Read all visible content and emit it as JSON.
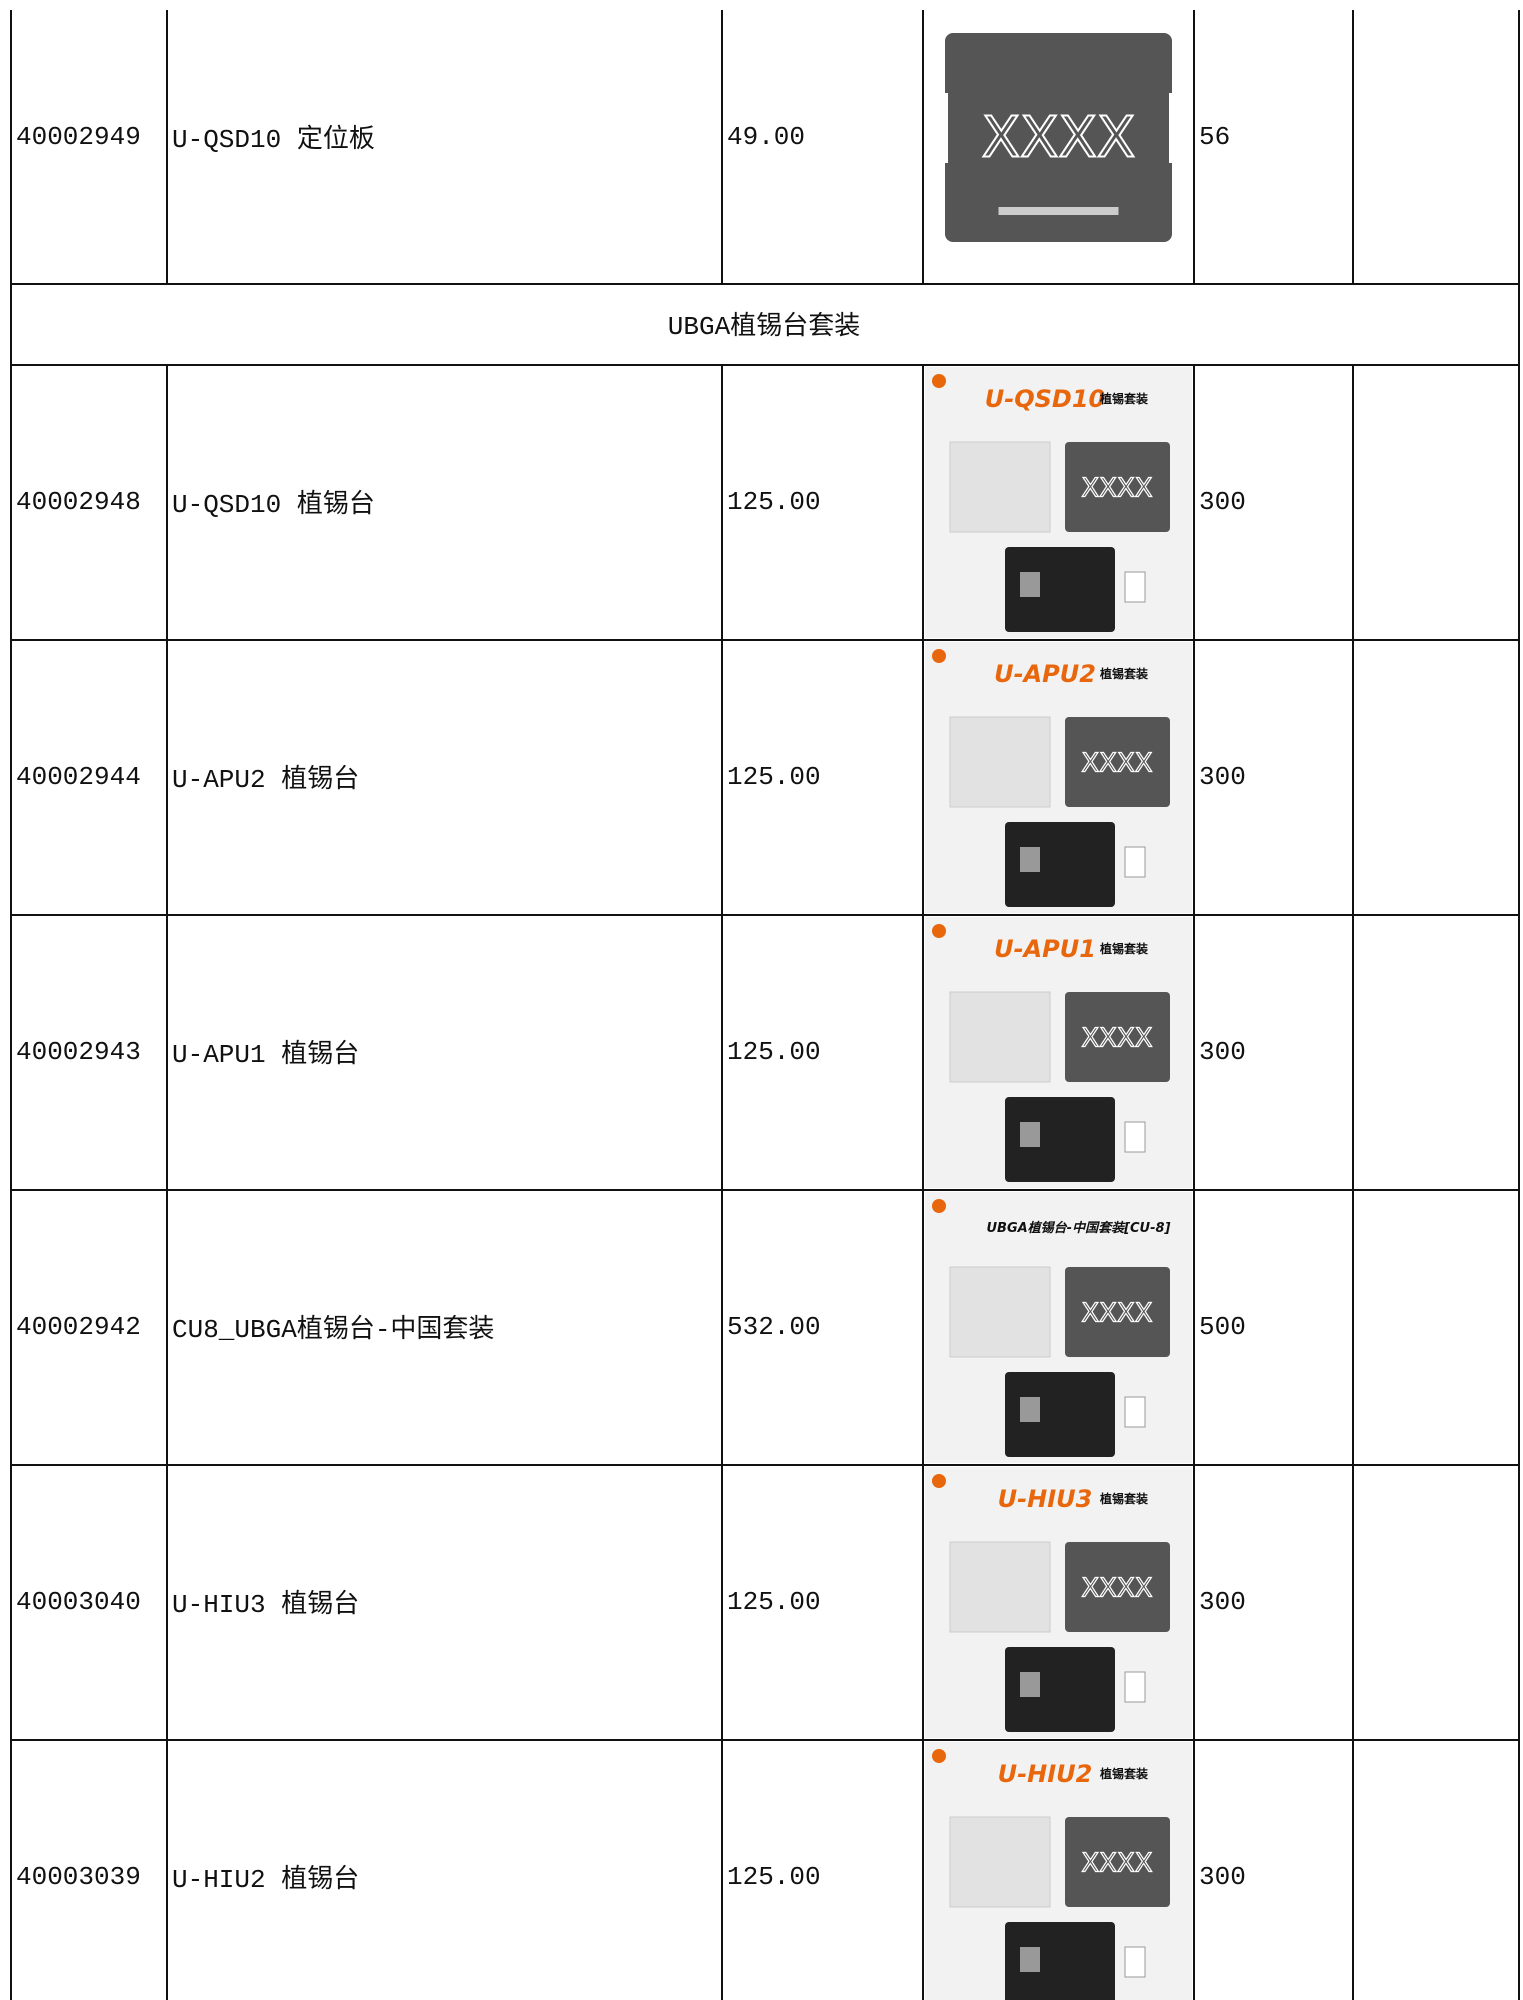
{
  "rows": [
    {
      "code": "40002949",
      "name": "U-QSD10 定位板",
      "price": "49.00",
      "qty": "56",
      "image": {
        "mark": "XXXX"
      }
    },
    {
      "section": "UBGA植锡台套装"
    },
    {
      "code": "40002948",
      "name": "U-QSD10 植锡台",
      "price": "125.00",
      "qty": "300",
      "image": {
        "title": "U-QSD10",
        "subtitle": "植锡套装",
        "mark": "XXXX"
      }
    },
    {
      "code": "40002944",
      "name": "U-APU2 植锡台",
      "price": "125.00",
      "qty": "300",
      "image": {
        "title": "U-APU2",
        "subtitle": "植锡套装",
        "mark": "XXXX"
      }
    },
    {
      "code": "40002943",
      "name": "U-APU1 植锡台",
      "price": "125.00",
      "qty": "300",
      "image": {
        "title": "U-APU1",
        "subtitle": "植锡套装",
        "mark": "XXXX"
      }
    },
    {
      "code": "40002942",
      "name": "CU8_UBGA植锡台-中国套装",
      "price": "532.00",
      "qty": "500",
      "image": {
        "title": "UBGA植锡台-中国套装[CU-8]",
        "mark": "XXXX"
      }
    },
    {
      "code": "40003040",
      "name": "U-HIU3 植锡台",
      "price": "125.00",
      "qty": "300",
      "image": {
        "title": "U-HIU3",
        "subtitle": "植锡套装",
        "mark": "XXXX"
      }
    },
    {
      "code": "40003039",
      "name": "U-HIU2 植锡台",
      "price": "125.00",
      "qty": "300",
      "image": {
        "title": "U-HIU2",
        "subtitle": "植锡套装",
        "mark": "XXXX"
      }
    }
  ]
}
